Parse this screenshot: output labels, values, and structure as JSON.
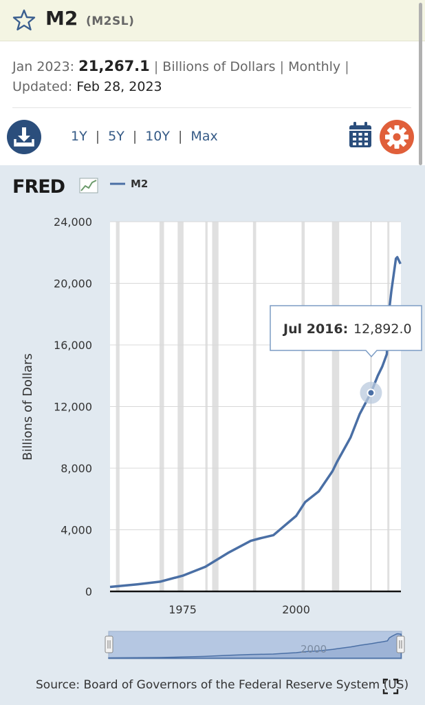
{
  "header": {
    "title": "M2",
    "series_id": "(M2SL)"
  },
  "meta": {
    "date_label": "Jan 2023:",
    "value": "21,267.1",
    "units": "Billions of Dollars",
    "frequency": "Monthly",
    "separator": "|",
    "updated_label": "Updated:",
    "updated_date": "Feb 28, 2023"
  },
  "toolbar": {
    "ranges": [
      "1Y",
      "5Y",
      "10Y",
      "Max"
    ]
  },
  "chart": {
    "logo_text": "FRED",
    "legend_label": "M2",
    "tooltip_date": "Jul 2016:",
    "tooltip_value": "12,892.0",
    "source": "Source: Board of Governors of the Federal Reserve System (US)",
    "navigator_label": "2000"
  },
  "colors": {
    "series": "#4a6fa5",
    "header_bg": "#f4f5e3",
    "panel_bg": "#e1e9f0",
    "recession": "#e0e0e0",
    "download_btn": "#2b4e7c",
    "settings_btn": "#e05f3a"
  },
  "chart_data": {
    "type": "line",
    "ylabel": "Billions of Dollars",
    "ylim": [
      0,
      24000
    ],
    "yticks": [
      0,
      4000,
      8000,
      12000,
      16000,
      20000,
      24000
    ],
    "ytick_labels": [
      "0",
      "4,000",
      "8,000",
      "12,000",
      "16,000",
      "20,000",
      "24,000"
    ],
    "xlim": [
      1959,
      2023.1
    ],
    "xticks": [
      1975,
      2000
    ],
    "xtick_labels": [
      "1975",
      "2000"
    ],
    "grid": "horizontal",
    "legend": "top-left",
    "recessions": [
      [
        1960.3,
        1961.1
      ],
      [
        1969.9,
        1970.9
      ],
      [
        1973.9,
        1975.2
      ],
      [
        1980.0,
        1980.5
      ],
      [
        1981.5,
        1982.9
      ],
      [
        1990.5,
        1991.2
      ],
      [
        2001.2,
        2001.9
      ],
      [
        2007.9,
        2009.5
      ],
      [
        2020.1,
        2020.3
      ]
    ],
    "series": [
      {
        "name": "M2",
        "x": [
          1959.0,
          1965.0,
          1970.0,
          1975.0,
          1980.0,
          1985.0,
          1990.0,
          1992.0,
          1995.0,
          1998.0,
          2000.0,
          2002.0,
          2005.0,
          2008.0,
          2009.0,
          2012.0,
          2014.0,
          2016.5,
          2018.0,
          2019.0,
          2020.0,
          2020.4,
          2021.0,
          2022.0,
          2022.3,
          2023.0
        ],
        "values": [
          290,
          460,
          630,
          1020,
          1600,
          2500,
          3280,
          3440,
          3650,
          4400,
          4900,
          5800,
          6500,
          7800,
          8400,
          10000,
          11500,
          12892,
          14000,
          14600,
          15400,
          18000,
          19500,
          21600,
          21700,
          21267
        ]
      }
    ],
    "highlight": {
      "x": 2016.5,
      "y": 12892,
      "label": "Jul 2016: 12,892.0"
    }
  }
}
